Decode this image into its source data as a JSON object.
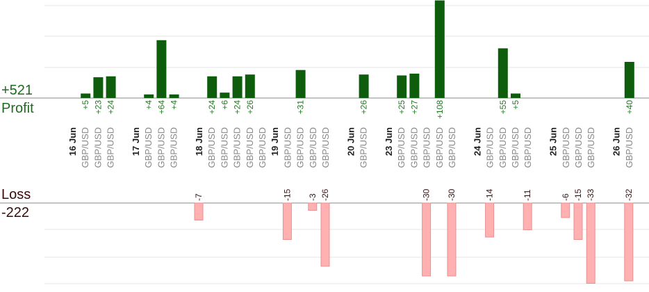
{
  "chart_data": {
    "type": "bar",
    "profit": {
      "total_label": "+521",
      "label": "Profit",
      "color": "#0d5d0d",
      "value_label_color": "#1e7a1e",
      "bars": [
        {
          "slot": 1,
          "value": 5,
          "label": "+5",
          "pair": "GBP/USD"
        },
        {
          "slot": 2,
          "value": 23,
          "label": "+23",
          "pair": "GBP/USD"
        },
        {
          "slot": 3,
          "value": 24,
          "label": "+24",
          "pair": "GBP/USD"
        },
        {
          "slot": 6,
          "value": 4,
          "label": "+4",
          "pair": "GBP/USD"
        },
        {
          "slot": 7,
          "value": 64,
          "label": "+64",
          "pair": "GBP/USD"
        },
        {
          "slot": 8,
          "value": 4,
          "label": "+4",
          "pair": "GBP/USD"
        },
        {
          "slot": 11,
          "value": 24,
          "label": "+24",
          "pair": "GBP/USD"
        },
        {
          "slot": 12,
          "value": 6,
          "label": "+6",
          "pair": "GBP/USD"
        },
        {
          "slot": 13,
          "value": 24,
          "label": "+24",
          "pair": "GBP/USD"
        },
        {
          "slot": 14,
          "value": 26,
          "label": "+26",
          "pair": "GBP/USD"
        },
        {
          "slot": 18,
          "value": 31,
          "label": "+31",
          "pair": "GBP/USD"
        },
        {
          "slot": 23,
          "value": 26,
          "label": "+26",
          "pair": "GBP/USD"
        },
        {
          "slot": 26,
          "value": 25,
          "label": "+25",
          "pair": "GBP/USD"
        },
        {
          "slot": 27,
          "value": 27,
          "label": "+27",
          "pair": "GBP/USD"
        },
        {
          "slot": 29,
          "value": 108,
          "label": "+108",
          "pair": "GBP/USD"
        },
        {
          "slot": 34,
          "value": 55,
          "label": "+55",
          "pair": "GBP/USD"
        },
        {
          "slot": 35,
          "value": 5,
          "label": "+5",
          "pair": "GBP/USD"
        },
        {
          "slot": 44,
          "value": 40,
          "label": "+40",
          "pair": "GBP/USD"
        }
      ]
    },
    "loss": {
      "total_label": "-222",
      "label": "Loss",
      "color": "#ffb0b0",
      "border_color": "#e89090",
      "value_label_color": "#3a1010",
      "bars": [
        {
          "slot": 10,
          "value": -7,
          "label": "-7",
          "pair": "GBP/USD"
        },
        {
          "slot": 17,
          "value": -15,
          "label": "-15",
          "pair": "GBP/USD"
        },
        {
          "slot": 19,
          "value": -3,
          "label": "-3",
          "pair": "GBP/USD"
        },
        {
          "slot": 20,
          "value": -26,
          "label": "-26",
          "pair": "GBP/USD"
        },
        {
          "slot": 28,
          "value": -30,
          "label": "-30",
          "pair": "GBP/USD"
        },
        {
          "slot": 30,
          "value": -30,
          "label": "-30",
          "pair": "GBP/USD"
        },
        {
          "slot": 33,
          "value": -14,
          "label": "-14",
          "pair": "GBP/USD"
        },
        {
          "slot": 36,
          "value": -11,
          "label": "-11",
          "pair": "GBP/USD"
        },
        {
          "slot": 39,
          "value": -6,
          "label": "-6",
          "pair": "GBP/USD"
        },
        {
          "slot": 40,
          "value": -15,
          "label": "-15",
          "pair": "GBP/USD"
        },
        {
          "slot": 41,
          "value": -33,
          "label": "-33",
          "pair": "GBP/USD"
        },
        {
          "slot": 44,
          "value": -32,
          "label": "-32",
          "pair": "GBP/USD"
        }
      ]
    },
    "dates": [
      {
        "slot": 0,
        "label": "16 Jun"
      },
      {
        "slot": 5,
        "label": "17 Jun"
      },
      {
        "slot": 10,
        "label": "18 Jun"
      },
      {
        "slot": 16,
        "label": "19 Jun"
      },
      {
        "slot": 22,
        "label": "20 Jun"
      },
      {
        "slot": 25,
        "label": "23 Jun"
      },
      {
        "slot": 32,
        "label": "24 Jun"
      },
      {
        "slot": 38,
        "label": "25 Jun"
      },
      {
        "slot": 43,
        "label": "26 Jun"
      }
    ],
    "pair_slots": [
      1,
      2,
      3,
      6,
      7,
      8,
      11,
      12,
      13,
      14,
      15,
      17,
      18,
      19,
      20,
      23,
      26,
      27,
      28,
      29,
      30,
      33,
      34,
      35,
      36,
      39,
      40,
      41,
      44
    ],
    "pair_label": "GBP/USD",
    "grid": true,
    "gridline_color": "#e6e6e6",
    "axis_color": "#888888"
  }
}
